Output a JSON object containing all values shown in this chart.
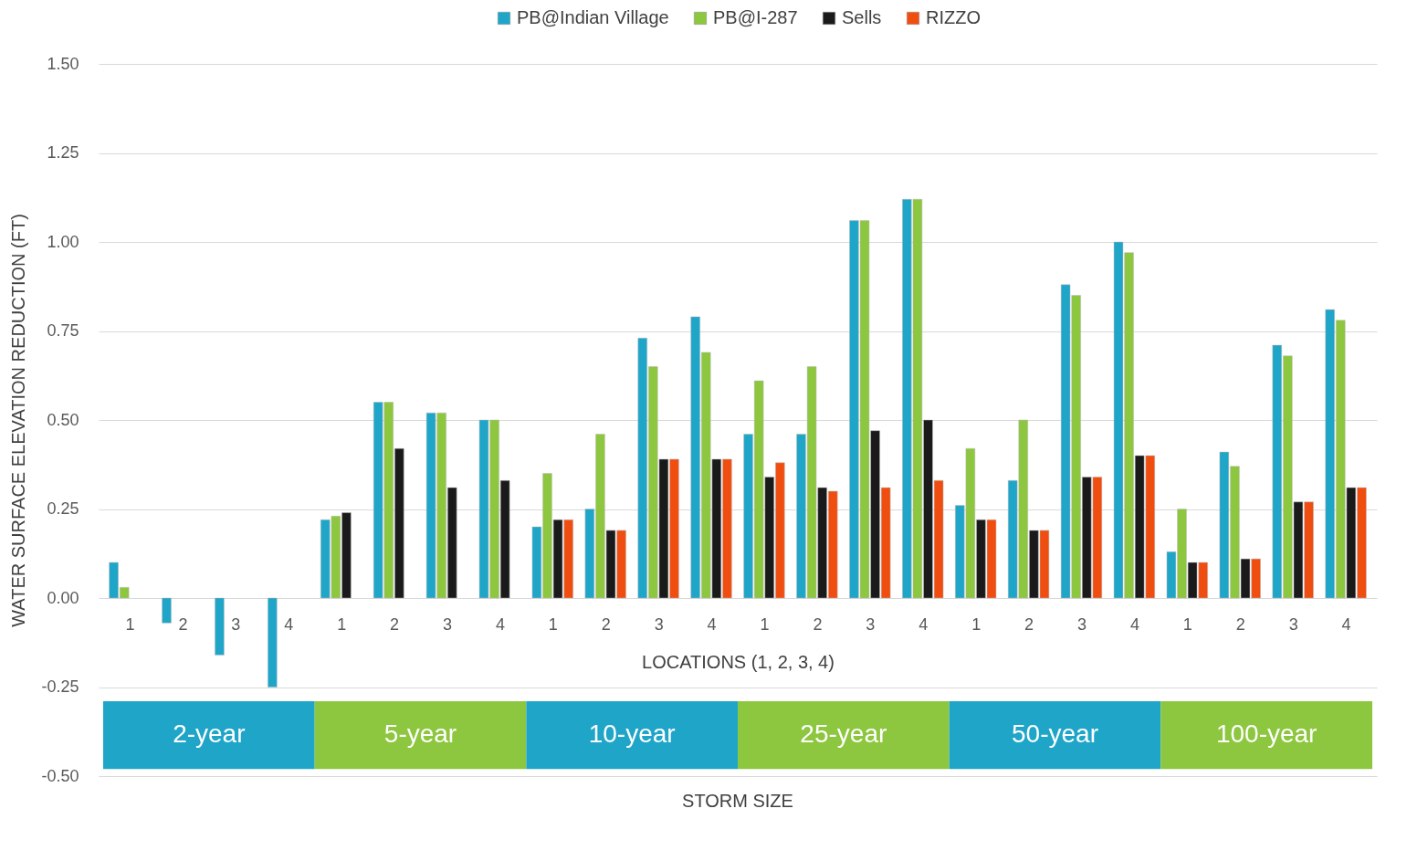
{
  "chart_data": {
    "type": "bar",
    "ylabel": "WATER SURFACE ELEVATION REDUCTION (FT)",
    "xlabel": "LOCATIONS (1, 2, 3, 4)",
    "categories": [
      "1",
      "2",
      "3",
      "4",
      "1",
      "2",
      "3",
      "4",
      "1",
      "2",
      "3",
      "4",
      "1",
      "2",
      "3",
      "4",
      "1",
      "2",
      "3",
      "4",
      "1",
      "2",
      "3",
      "4"
    ],
    "series": [
      {
        "name": "PB@Indian Village",
        "color": "#1fa5c8",
        "values": [
          0.1,
          -0.07,
          -0.16,
          -0.25,
          0.22,
          0.55,
          0.52,
          0.5,
          0.2,
          0.25,
          0.73,
          0.79,
          0.46,
          0.46,
          1.06,
          1.12,
          0.26,
          0.33,
          0.88,
          1.0,
          0.13,
          0.41,
          0.71,
          0.81
        ]
      },
      {
        "name": "PB@I-287",
        "color": "#8dc63f",
        "values": [
          0.03,
          null,
          null,
          null,
          0.23,
          0.55,
          0.52,
          0.5,
          0.35,
          0.46,
          0.65,
          0.69,
          0.61,
          0.65,
          1.06,
          1.12,
          0.42,
          0.5,
          0.85,
          0.97,
          0.25,
          0.37,
          0.68,
          0.78
        ]
      },
      {
        "name": "Sells",
        "color": "#1a1a1a",
        "values": [
          null,
          null,
          null,
          null,
          0.24,
          0.42,
          0.31,
          0.33,
          0.22,
          0.19,
          0.39,
          0.39,
          0.34,
          0.31,
          0.47,
          0.5,
          0.22,
          0.19,
          0.34,
          0.4,
          0.1,
          0.11,
          0.27,
          0.31
        ]
      },
      {
        "name": "RIZZO",
        "color": "#f04e10",
        "values": [
          null,
          null,
          null,
          null,
          null,
          null,
          null,
          null,
          0.22,
          0.19,
          0.39,
          0.39,
          0.38,
          0.3,
          0.31,
          0.33,
          0.22,
          0.19,
          0.34,
          0.4,
          0.1,
          0.11,
          0.27,
          0.31
        ]
      }
    ],
    "ylim": [
      -0.5,
      1.5
    ],
    "yticks": [
      {
        "value": -0.5,
        "label": "-0.50"
      },
      {
        "value": -0.25,
        "label": "-0.25"
      },
      {
        "value": 0,
        "label": "0.00"
      },
      {
        "value": 0.25,
        "label": "0.25"
      },
      {
        "value": 0.5,
        "label": "0.50"
      },
      {
        "value": 0.75,
        "label": "0.75"
      },
      {
        "value": 1,
        "label": "1.00"
      },
      {
        "value": 1.25,
        "label": "1.25"
      },
      {
        "value": 1.5,
        "label": "1.50"
      }
    ],
    "grid": "y",
    "legend": "top",
    "annotations": [
      "2-year",
      "5-year",
      "10-year",
      "25-year",
      "50-year",
      "100-year",
      "STORM SIZE"
    ]
  }
}
